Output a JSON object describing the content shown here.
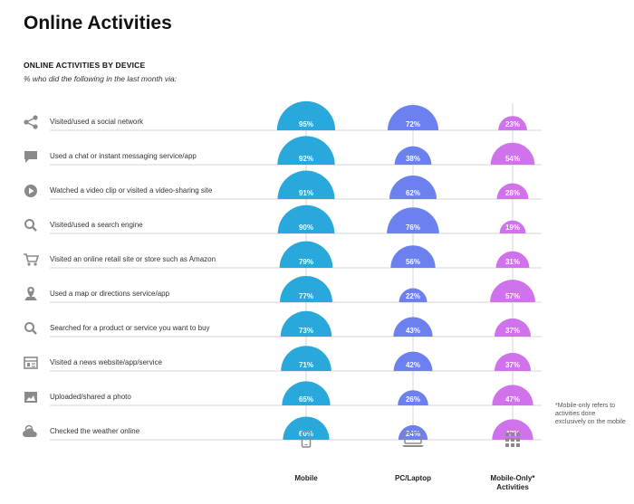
{
  "page": {
    "title": "Online Activities",
    "chart_heading": "ONLINE ACTIVITIES BY DEVICE",
    "chart_subheading": "% who did the following in the last month via:",
    "footnote": "*Mobile-only refers to activities done exclusively on the mobile"
  },
  "colors": {
    "mobile": "#29a8dc",
    "pc_laptop": "#6d80f0",
    "mobile_only": "#cf72ec",
    "icon": "#8a8a8a",
    "divider": "#d6d6d6"
  },
  "chart_data": {
    "type": "bar",
    "title": "ONLINE ACTIVITIES BY DEVICE",
    "subtitle": "% who did the following in the last month via:",
    "categories": [
      "Visited/used a social network",
      "Used a chat or instant messaging service/app",
      "Watched a video clip or visited a video-sharing site",
      "Visited/used a search engine",
      "Visited an online retail site or store such as Amazon",
      "Used a map or directions service/app",
      "Searched for a product or service you want to buy",
      "Visited a news website/app/service",
      "Uploaded/shared a photo",
      "Checked the weather online"
    ],
    "icons": [
      "share-icon",
      "chat-icon",
      "play-icon",
      "search-icon",
      "cart-icon",
      "map-pin-icon",
      "search-icon",
      "news-icon",
      "photo-icon",
      "weather-icon"
    ],
    "series": [
      {
        "name": "Mobile",
        "icon": "smartphone-icon",
        "values": [
          95,
          92,
          91,
          90,
          79,
          77,
          73,
          71,
          65,
          60
        ]
      },
      {
        "name": "PC/Laptop",
        "icon": "laptop-icon",
        "values": [
          72,
          38,
          62,
          76,
          56,
          22,
          43,
          42,
          26,
          24
        ]
      },
      {
        "name": "Mobile-Only* Activities",
        "icon": "grid-icon",
        "values": [
          23,
          54,
          28,
          19,
          31,
          57,
          37,
          37,
          47,
          47
        ]
      }
    ],
    "value_suffix": "%",
    "ylim": [
      0,
      100
    ]
  }
}
